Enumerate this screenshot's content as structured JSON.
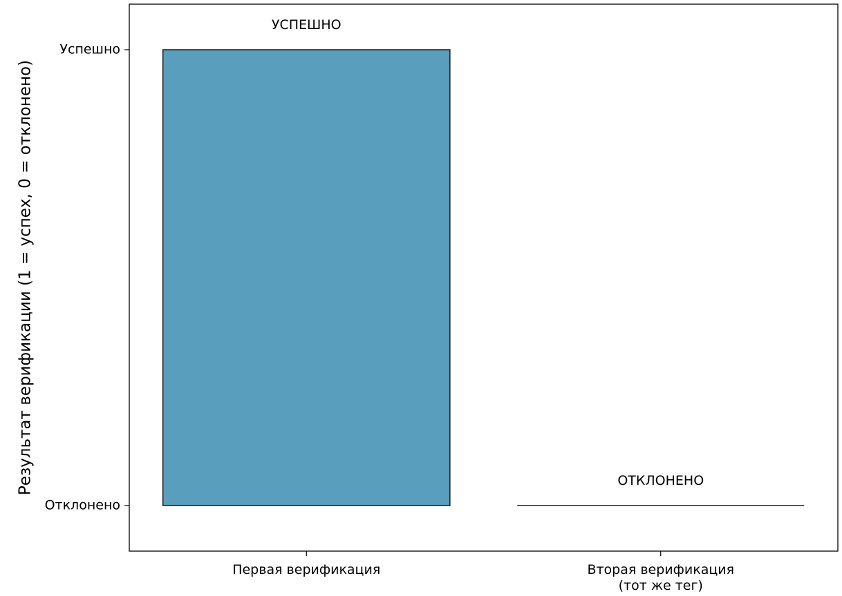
{
  "chart_data": {
    "type": "bar",
    "categories": [
      [
        "Первая верификация"
      ],
      [
        "Вторая верификация",
        "(тот же тег)"
      ]
    ],
    "values": [
      1,
      0
    ],
    "bar_labels": [
      "УСПЕШНО",
      "ОТКЛОНЕНО"
    ],
    "ylabel": "Результат верификации (1 = успех, 0 = отклонено)",
    "yticks": [
      {
        "value": 0,
        "label": "Отклонено"
      },
      {
        "value": 1,
        "label": "Успешно"
      }
    ],
    "ylim": [
      -0.1,
      1.1
    ],
    "grid": false,
    "colors": {
      "bar": "#5A9EBE",
      "edge": "#222222"
    }
  }
}
